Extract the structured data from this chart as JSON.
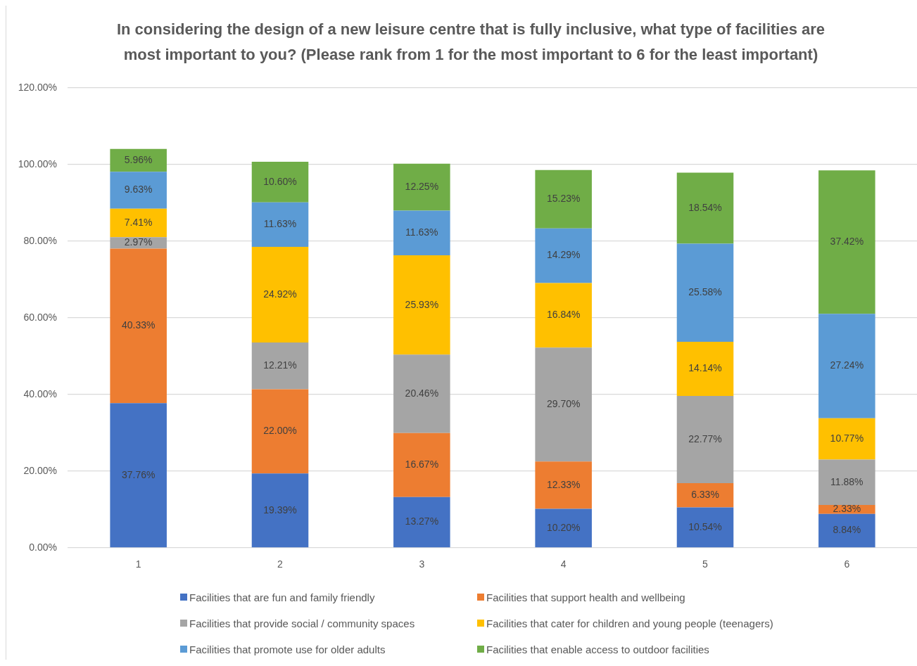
{
  "chart_data": {
    "type": "bar",
    "title": "In considering the design of a new leisure centre that is fully inclusive, what type of facilities are most important to you? (Please rank from 1 for the most important to 6 for the least important)",
    "categories": [
      "1",
      "2",
      "3",
      "4",
      "5",
      "6"
    ],
    "stacked": true,
    "series": [
      {
        "name": "Facilities that are fun and family friendly",
        "color": "#4472c4",
        "values": [
          37.76,
          19.39,
          13.27,
          10.2,
          10.54,
          8.84
        ],
        "value_labels": [
          "37.76%",
          "19.39%",
          "13.27%",
          "10.20%",
          "10.54%",
          "8.84%"
        ]
      },
      {
        "name": "Facilities that support health and wellbeing",
        "color": "#ed7d31",
        "values": [
          40.33,
          22.0,
          16.67,
          12.33,
          6.33,
          2.33
        ],
        "value_labels": [
          "40.33%",
          "22.00%",
          "16.67%",
          "12.33%",
          "6.33%",
          "2.33%"
        ]
      },
      {
        "name": "Facilities that provide social / community spaces",
        "color": "#a5a5a5",
        "values": [
          2.97,
          12.21,
          20.46,
          29.7,
          22.77,
          11.88
        ],
        "value_labels": [
          "2.97%",
          "12.21%",
          "20.46%",
          "29.70%",
          "22.77%",
          "11.88%"
        ]
      },
      {
        "name": "Facilities that cater for children and young people (teenagers)",
        "color": "#ffc000",
        "values": [
          7.41,
          24.92,
          25.93,
          16.84,
          14.14,
          10.77
        ],
        "value_labels": [
          "7.41%",
          "24.92%",
          "25.93%",
          "16.84%",
          "14.14%",
          "10.77%"
        ]
      },
      {
        "name": "Facilities that promote use for older adults",
        "color": "#5b9bd5",
        "values": [
          9.63,
          11.63,
          11.63,
          14.29,
          25.58,
          27.24
        ],
        "value_labels": [
          "9.63%",
          "11.63%",
          "11.63%",
          "14.29%",
          "25.58%",
          "27.24%"
        ]
      },
      {
        "name": "Facilities that enable access to outdoor facilities",
        "color": "#70ad47",
        "values": [
          5.96,
          10.6,
          12.25,
          15.23,
          18.54,
          37.42
        ],
        "value_labels": [
          "5.96%",
          "10.60%",
          "12.25%",
          "15.23%",
          "18.54%",
          "37.42%"
        ]
      }
    ],
    "ylim": [
      0,
      120
    ],
    "yticks": [
      {
        "value": 0,
        "label": "0.00%"
      },
      {
        "value": 20,
        "label": "20.00%"
      },
      {
        "value": 40,
        "label": "40.00%"
      },
      {
        "value": 60,
        "label": "60.00%"
      },
      {
        "value": 80,
        "label": "80.00%"
      },
      {
        "value": 100,
        "label": "100.00%"
      },
      {
        "value": 120,
        "label": "120.00%"
      }
    ],
    "grid": "y",
    "legend": "bottom"
  }
}
